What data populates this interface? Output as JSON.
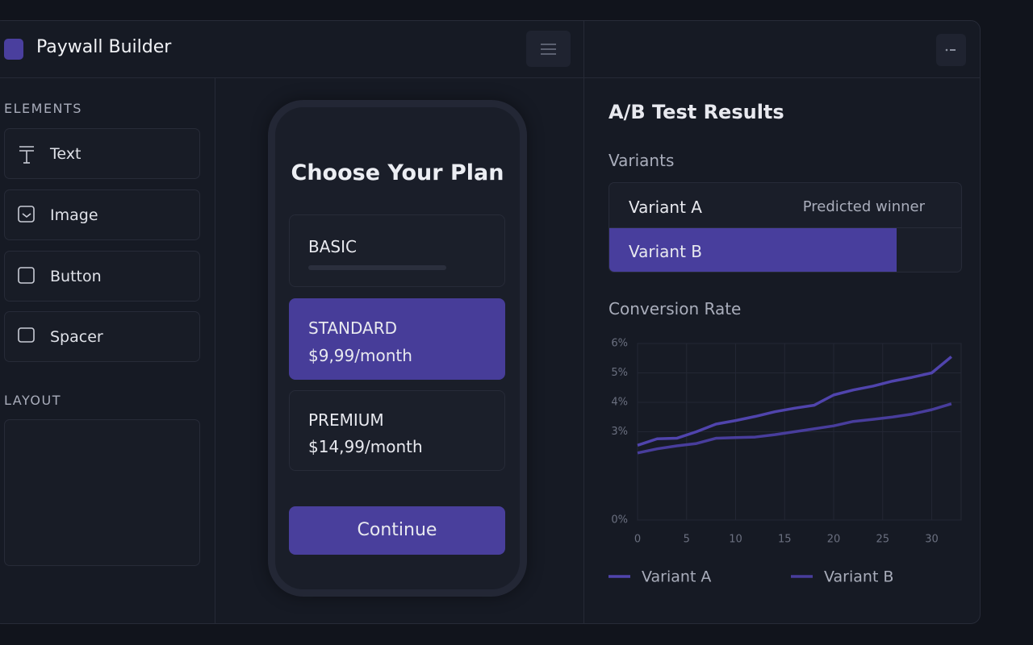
{
  "app": {
    "title": "Paywall Builder"
  },
  "sidebar": {
    "elements_heading": "ELEMENTS",
    "elements": [
      "Text",
      "Image",
      "Button",
      "Spacer"
    ],
    "layout_heading": "LAYOUT"
  },
  "preview": {
    "title": "Choose Your Plan",
    "plans": [
      {
        "name": "BASIC"
      },
      {
        "name": "STANDARD",
        "price": "$9,99/month"
      },
      {
        "name": "PREMIUM",
        "price": "$14,99/month"
      }
    ],
    "button": "Continue"
  },
  "results": {
    "title": "A/B Test Results",
    "variants_heading": "Variants",
    "variants": [
      {
        "name": "Variant A",
        "note": "Predicted winner"
      },
      {
        "name": "Variant B"
      }
    ],
    "chart_heading": "Conversion Rate"
  },
  "chart_data": {
    "type": "line",
    "x": [
      0,
      2,
      4,
      6,
      8,
      10,
      12,
      14,
      16,
      18,
      20,
      22,
      24,
      26,
      28,
      30,
      32
    ],
    "series": [
      {
        "name": "Variant A",
        "color": "#5044ad",
        "values": [
          2.54,
          2.76,
          2.78,
          3.0,
          3.26,
          3.38,
          3.52,
          3.68,
          3.8,
          3.9,
          4.25,
          4.42,
          4.55,
          4.72,
          4.85,
          5.0,
          5.55
        ]
      },
      {
        "name": "Variant B",
        "color": "#483d9c",
        "values": [
          2.28,
          2.42,
          2.52,
          2.6,
          2.78,
          2.8,
          2.82,
          2.9,
          3.0,
          3.1,
          3.2,
          3.35,
          3.42,
          3.5,
          3.6,
          3.75,
          3.95
        ]
      }
    ],
    "xlim": [
      0,
      33
    ],
    "xticks": [
      0,
      5,
      10,
      15,
      20,
      25,
      30
    ],
    "ylim": [
      0,
      6
    ],
    "yticks": [
      {
        "value": 0,
        "label": "0%"
      },
      {
        "value": 3,
        "label": "3%"
      },
      {
        "value": 4,
        "label": "4%"
      },
      {
        "value": 5,
        "label": "5%"
      },
      {
        "value": 6,
        "label": "6%"
      }
    ],
    "grid": true
  }
}
